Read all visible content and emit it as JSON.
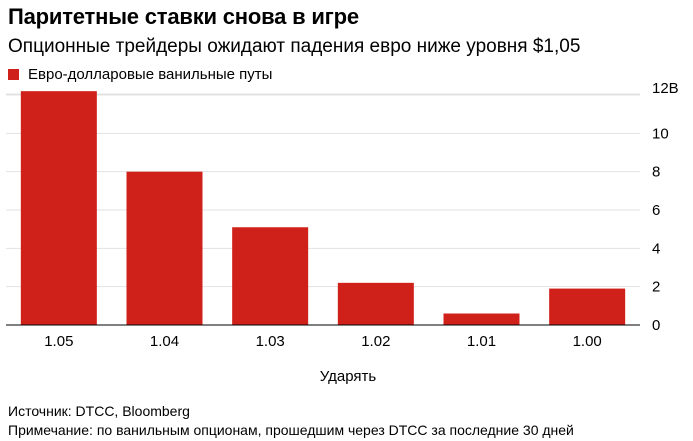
{
  "header": {
    "title": "Паритетные ставки снова в игре",
    "subtitle": "Опционные трейдеры ожидают падения евро ниже уровня $1,05"
  },
  "legend": {
    "label": "Евро-долларовые ванильные путы",
    "color": "#d0201a"
  },
  "chart_data": {
    "type": "bar",
    "title": "Паритетные ставки снова в игре",
    "subtitle": "Опционные трейдеры ожидают падения евро ниже уровня $1,05",
    "categories": [
      "1.05",
      "1.04",
      "1.03",
      "1.02",
      "1.01",
      "1.00"
    ],
    "series": [
      {
        "name": "Евро-долларовые ванильные путы",
        "values": [
          12.2,
          8.0,
          5.1,
          2.2,
          0.6,
          1.9
        ]
      }
    ],
    "xlabel": "Ударять",
    "ylabel": "",
    "ylim": [
      0,
      12
    ],
    "yticks": [
      0,
      2,
      4,
      6,
      8,
      10,
      12
    ],
    "ytick_labels": [
      "0",
      "2",
      "4",
      "6",
      "8",
      "10",
      "12B"
    ],
    "grid": true,
    "legend_position": "top-left",
    "bar_color": "#d0201a",
    "grid_color": "#e2e2e2"
  },
  "footer": {
    "source": "Источник: DTCC, Bloomberg",
    "note": "Примечание: по ванильным опционам, прошедшим через DTCC за последние 30 дней"
  }
}
